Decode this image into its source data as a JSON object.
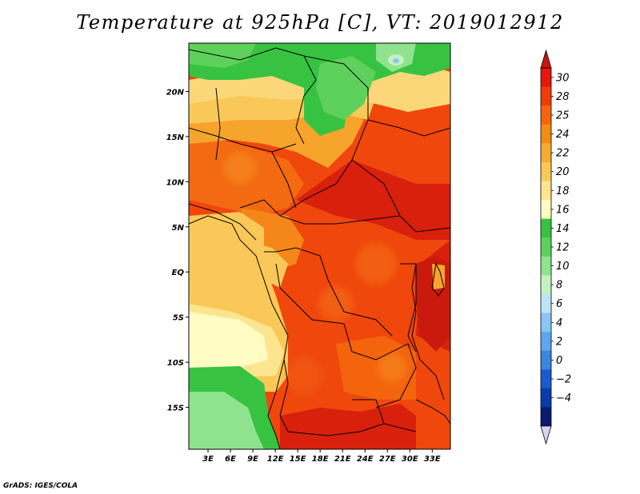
{
  "title": "Temperature at 925hPa [C], VT: 2019012912",
  "credit": "GrADS: IGES/COLA",
  "map": {
    "lon_range": [
      0,
      35
    ],
    "lat_range": [
      -20,
      25
    ],
    "lon_ticks": [
      {
        "value": 3,
        "label": "3E"
      },
      {
        "value": 6,
        "label": "6E"
      },
      {
        "value": 9,
        "label": "9E"
      },
      {
        "value": 12,
        "label": "12E"
      },
      {
        "value": 15,
        "label": "15E"
      },
      {
        "value": 18,
        "label": "18E"
      },
      {
        "value": 21,
        "label": "21E"
      },
      {
        "value": 24,
        "label": "24E"
      },
      {
        "value": 27,
        "label": "27E"
      },
      {
        "value": 30,
        "label": "30E"
      },
      {
        "value": 33,
        "label": "33E"
      }
    ],
    "lat_ticks": [
      {
        "value": 20,
        "label": "20N"
      },
      {
        "value": 15,
        "label": "15N"
      },
      {
        "value": 10,
        "label": "10N"
      },
      {
        "value": 5,
        "label": "5N"
      },
      {
        "value": 0,
        "label": "EQ"
      },
      {
        "value": -5,
        "label": "5S"
      },
      {
        "value": -10,
        "label": "10S"
      },
      {
        "value": -15,
        "label": "15S"
      }
    ]
  },
  "colorbar": {
    "levels": [
      "30",
      "28",
      "25",
      "24",
      "22",
      "20",
      "18",
      "16",
      "14",
      "12",
      "10",
      "8",
      "6",
      "4",
      "2",
      "0",
      "−2",
      "−4"
    ],
    "colors": [
      "#e6170f",
      "#f03c0a",
      "#f3640d",
      "#f48c17",
      "#f6ab31",
      "#fac859",
      "#fde58f",
      "#fefbc3",
      "#37c341",
      "#5ed15d",
      "#8fe38e",
      "#c2f2bf",
      "#bde3f6",
      "#89c6f2",
      "#5ea7ec",
      "#3a86e0",
      "#1a5bd0",
      "#0b3aaa",
      "#0a1a6e"
    ],
    "top_arrow_color": "#c9160d",
    "bottom_arrow_color": "#d6d6f2"
  }
}
